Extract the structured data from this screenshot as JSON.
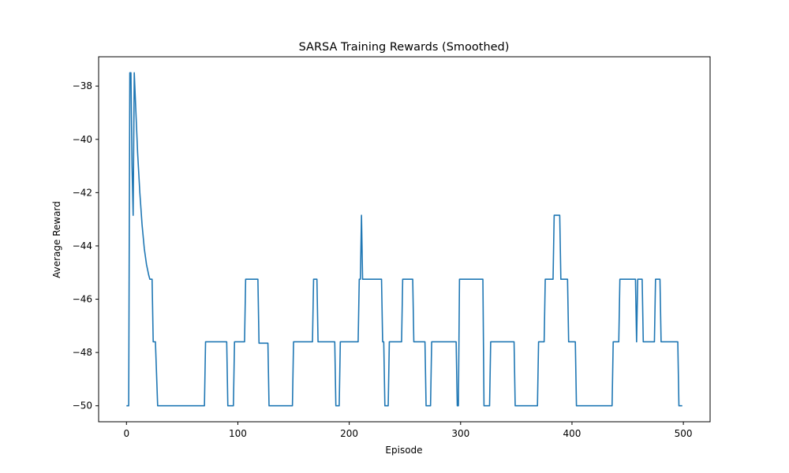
{
  "chart_data": {
    "type": "line",
    "title": "SARSA Training Rewards (Smoothed)",
    "xlabel": "Episode",
    "ylabel": "Average Reward",
    "xlim": [
      -25,
      524
    ],
    "ylim": [
      -50.6,
      -36.9
    ],
    "xticks": [
      0,
      100,
      200,
      300,
      400,
      500
    ],
    "yticks": [
      -50,
      -48,
      -46,
      -44,
      -42,
      -40,
      -38
    ],
    "grid": false,
    "line_color": "#1f77b4",
    "series": [
      {
        "points": [
          [
            0,
            -50.0
          ],
          [
            2,
            -50.0
          ],
          [
            3,
            -37.5
          ],
          [
            4,
            -37.5
          ],
          [
            5,
            -41.0
          ],
          [
            6,
            -42.85
          ],
          [
            7,
            -37.5
          ],
          [
            8,
            -38.5
          ],
          [
            10,
            -40.5
          ],
          [
            12,
            -42.0
          ],
          [
            14,
            -43.2
          ],
          [
            16,
            -44.1
          ],
          [
            18,
            -44.7
          ],
          [
            20,
            -45.1
          ],
          [
            21,
            -45.25
          ],
          [
            23,
            -45.25
          ],
          [
            24,
            -47.6
          ],
          [
            26,
            -47.6
          ],
          [
            28,
            -50.0
          ],
          [
            70,
            -50.0
          ],
          [
            71,
            -47.6
          ],
          [
            90,
            -47.6
          ],
          [
            91,
            -50.0
          ],
          [
            96,
            -50.0
          ],
          [
            97,
            -47.6
          ],
          [
            106,
            -47.6
          ],
          [
            107,
            -45.25
          ],
          [
            118,
            -45.25
          ],
          [
            119,
            -47.65
          ],
          [
            127,
            -47.65
          ],
          [
            128,
            -50.0
          ],
          [
            149,
            -50.0
          ],
          [
            150,
            -47.6
          ],
          [
            167,
            -47.6
          ],
          [
            168,
            -45.25
          ],
          [
            171,
            -45.25
          ],
          [
            172,
            -47.6
          ],
          [
            187,
            -47.6
          ],
          [
            188,
            -50.0
          ],
          [
            191,
            -50.0
          ],
          [
            192,
            -47.6
          ],
          [
            208,
            -47.6
          ],
          [
            209,
            -45.25
          ],
          [
            210,
            -45.25
          ],
          [
            211,
            -42.85
          ],
          [
            212,
            -45.25
          ],
          [
            229,
            -45.25
          ],
          [
            230,
            -47.6
          ],
          [
            231,
            -47.6
          ],
          [
            232,
            -50.0
          ],
          [
            235,
            -50.0
          ],
          [
            236,
            -47.6
          ],
          [
            247,
            -47.6
          ],
          [
            248,
            -45.25
          ],
          [
            257,
            -45.25
          ],
          [
            258,
            -47.6
          ],
          [
            268,
            -47.6
          ],
          [
            269,
            -50.0
          ],
          [
            273,
            -50.0
          ],
          [
            274,
            -47.6
          ],
          [
            296,
            -47.6
          ],
          [
            297,
            -50.0
          ],
          [
            298,
            -50.0
          ],
          [
            299,
            -45.25
          ],
          [
            320,
            -45.25
          ],
          [
            321,
            -50.0
          ],
          [
            326,
            -50.0
          ],
          [
            327,
            -47.6
          ],
          [
            348,
            -47.6
          ],
          [
            349,
            -50.0
          ],
          [
            369,
            -50.0
          ],
          [
            370,
            -47.6
          ],
          [
            375,
            -47.6
          ],
          [
            376,
            -45.25
          ],
          [
            383,
            -45.25
          ],
          [
            384,
            -42.85
          ],
          [
            389,
            -42.85
          ],
          [
            390,
            -45.25
          ],
          [
            396,
            -45.25
          ],
          [
            397,
            -47.6
          ],
          [
            403,
            -47.6
          ],
          [
            404,
            -50.0
          ],
          [
            436,
            -50.0
          ],
          [
            437,
            -47.6
          ],
          [
            442,
            -47.6
          ],
          [
            443,
            -45.25
          ],
          [
            457,
            -45.25
          ],
          [
            458,
            -47.6
          ],
          [
            459,
            -45.25
          ],
          [
            463,
            -45.25
          ],
          [
            464,
            -47.6
          ],
          [
            474,
            -47.6
          ],
          [
            475,
            -45.25
          ],
          [
            479,
            -45.25
          ],
          [
            480,
            -47.6
          ],
          [
            495,
            -47.6
          ],
          [
            496,
            -50.0
          ],
          [
            499,
            -50.0
          ]
        ]
      }
    ]
  }
}
